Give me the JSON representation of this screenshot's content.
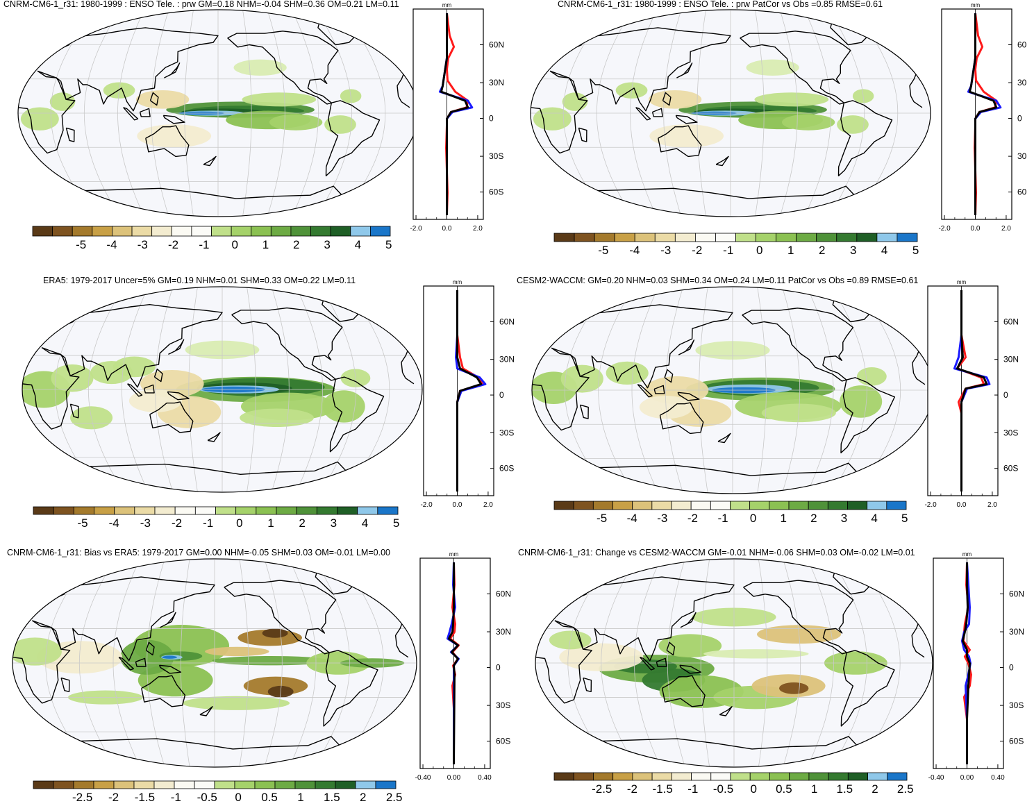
{
  "panels": [
    {
      "title": "CNRM-CM6-1_r31: 1980-1999 : ENSO Tele. : prw GM=0.18 NHM=-0.04 SHM=0.36 OM=0.21 LM=0.11",
      "unit": "mm",
      "lat_ticks": [
        "60N",
        "30N",
        "0",
        "30S",
        "60S"
      ],
      "x_ticks": [
        "-2.0",
        "0.0",
        "2.0"
      ],
      "colorbar_labels": [
        "-5",
        "-4",
        "-3",
        "-2",
        "-1",
        "0",
        "1",
        "2",
        "3",
        "4",
        "5"
      ]
    },
    {
      "title": "CNRM-CM6-1_r31: 1980-1999 : ENSO Tele. : prw PatCor vs Obs =0.85 RMSE=0.61",
      "unit": "mm",
      "lat_ticks": [
        "60",
        "30",
        "0",
        "30",
        "60"
      ],
      "x_ticks": [
        "-2.0",
        "0.0",
        "2.0"
      ],
      "colorbar_labels": [
        "-5",
        "-4",
        "-3",
        "-2",
        "-1",
        "0",
        "1",
        "2",
        "3",
        "4",
        "5"
      ]
    },
    {
      "title": "ERA5: 1979-2017 Uncer=5% GM=0.19 NHM=0.01 SHM=0.33 OM=0.22 LM=0.11",
      "unit": "mm",
      "lat_ticks": [
        "60N",
        "30N",
        "0",
        "30S",
        "60S"
      ],
      "x_ticks": [
        "-2.0",
        "0.0",
        "2.0"
      ],
      "colorbar_labels": [
        "-5",
        "-4",
        "-3",
        "-2",
        "-1",
        "0",
        "1",
        "2",
        "3",
        "4",
        "5"
      ]
    },
    {
      "title": "CESM2-WACCM: GM=0.20 NHM=0.03 SHM=0.34 OM=0.24 LM=0.11 PatCor vs Obs =0.89 RMSE=0.61",
      "unit": "mm",
      "lat_ticks": [
        "60N",
        "30N",
        "0",
        "30S",
        "60S"
      ],
      "x_ticks": [
        "-2.0",
        "0.0",
        "2.0"
      ],
      "colorbar_labels": [
        "-5",
        "-4",
        "-3",
        "-2",
        "-1",
        "0",
        "1",
        "2",
        "3",
        "4",
        "5"
      ]
    },
    {
      "title": "CNRM-CM6-1_r31: Bias vs ERA5: 1979-2017 GM=0.00 NHM=-0.05 SHM=0.03 OM=-0.01 LM=0.00",
      "unit": "mm",
      "lat_ticks": [
        "60N",
        "30N",
        "0",
        "30S",
        "60S"
      ],
      "x_ticks": [
        "-0.40",
        "0.00",
        "0.40"
      ],
      "colorbar_labels": [
        "-2.5",
        "-2",
        "-1.5",
        "-1",
        "-0.5",
        "0",
        "0.5",
        "1",
        "1.5",
        "2",
        "2.5"
      ]
    },
    {
      "title": "CNRM-CM6-1_r31: Change vs CESM2-WACCM GM=-0.01 NHM=-0.06 SHM=0.03 OM=-0.02 LM=0.01",
      "unit": "mm",
      "lat_ticks": [
        "60N",
        "30N",
        "0",
        "30S",
        "60S"
      ],
      "x_ticks": [
        "-0.40",
        "0.00",
        "0.40"
      ],
      "colorbar_labels": [
        "-2.5",
        "-2",
        "-1.5",
        "-1",
        "-0.5",
        "0",
        "0.5",
        "1",
        "1.5",
        "2",
        "2.5"
      ]
    }
  ],
  "colors": {
    "palette": [
      "#5a3a17",
      "#7e5320",
      "#a47a2c",
      "#c8a046",
      "#dcc27a",
      "#ebdba6",
      "#f3ecd0",
      "#fbfaf3",
      "#fbfbf7",
      "#d9ecb2",
      "#c0e08a",
      "#a5d26a",
      "#8bc152",
      "#6dab44",
      "#4f9239",
      "#347a30",
      "#1f5f26",
      "#8fc8ea",
      "#1a76c9"
    ],
    "ocean": "#f6f7fb",
    "grid": "#c8c8c8",
    "coast": "#000000",
    "line_model": "#ff1a1a",
    "line_obs": "#1a1aff",
    "line_mean": "#000000"
  }
}
